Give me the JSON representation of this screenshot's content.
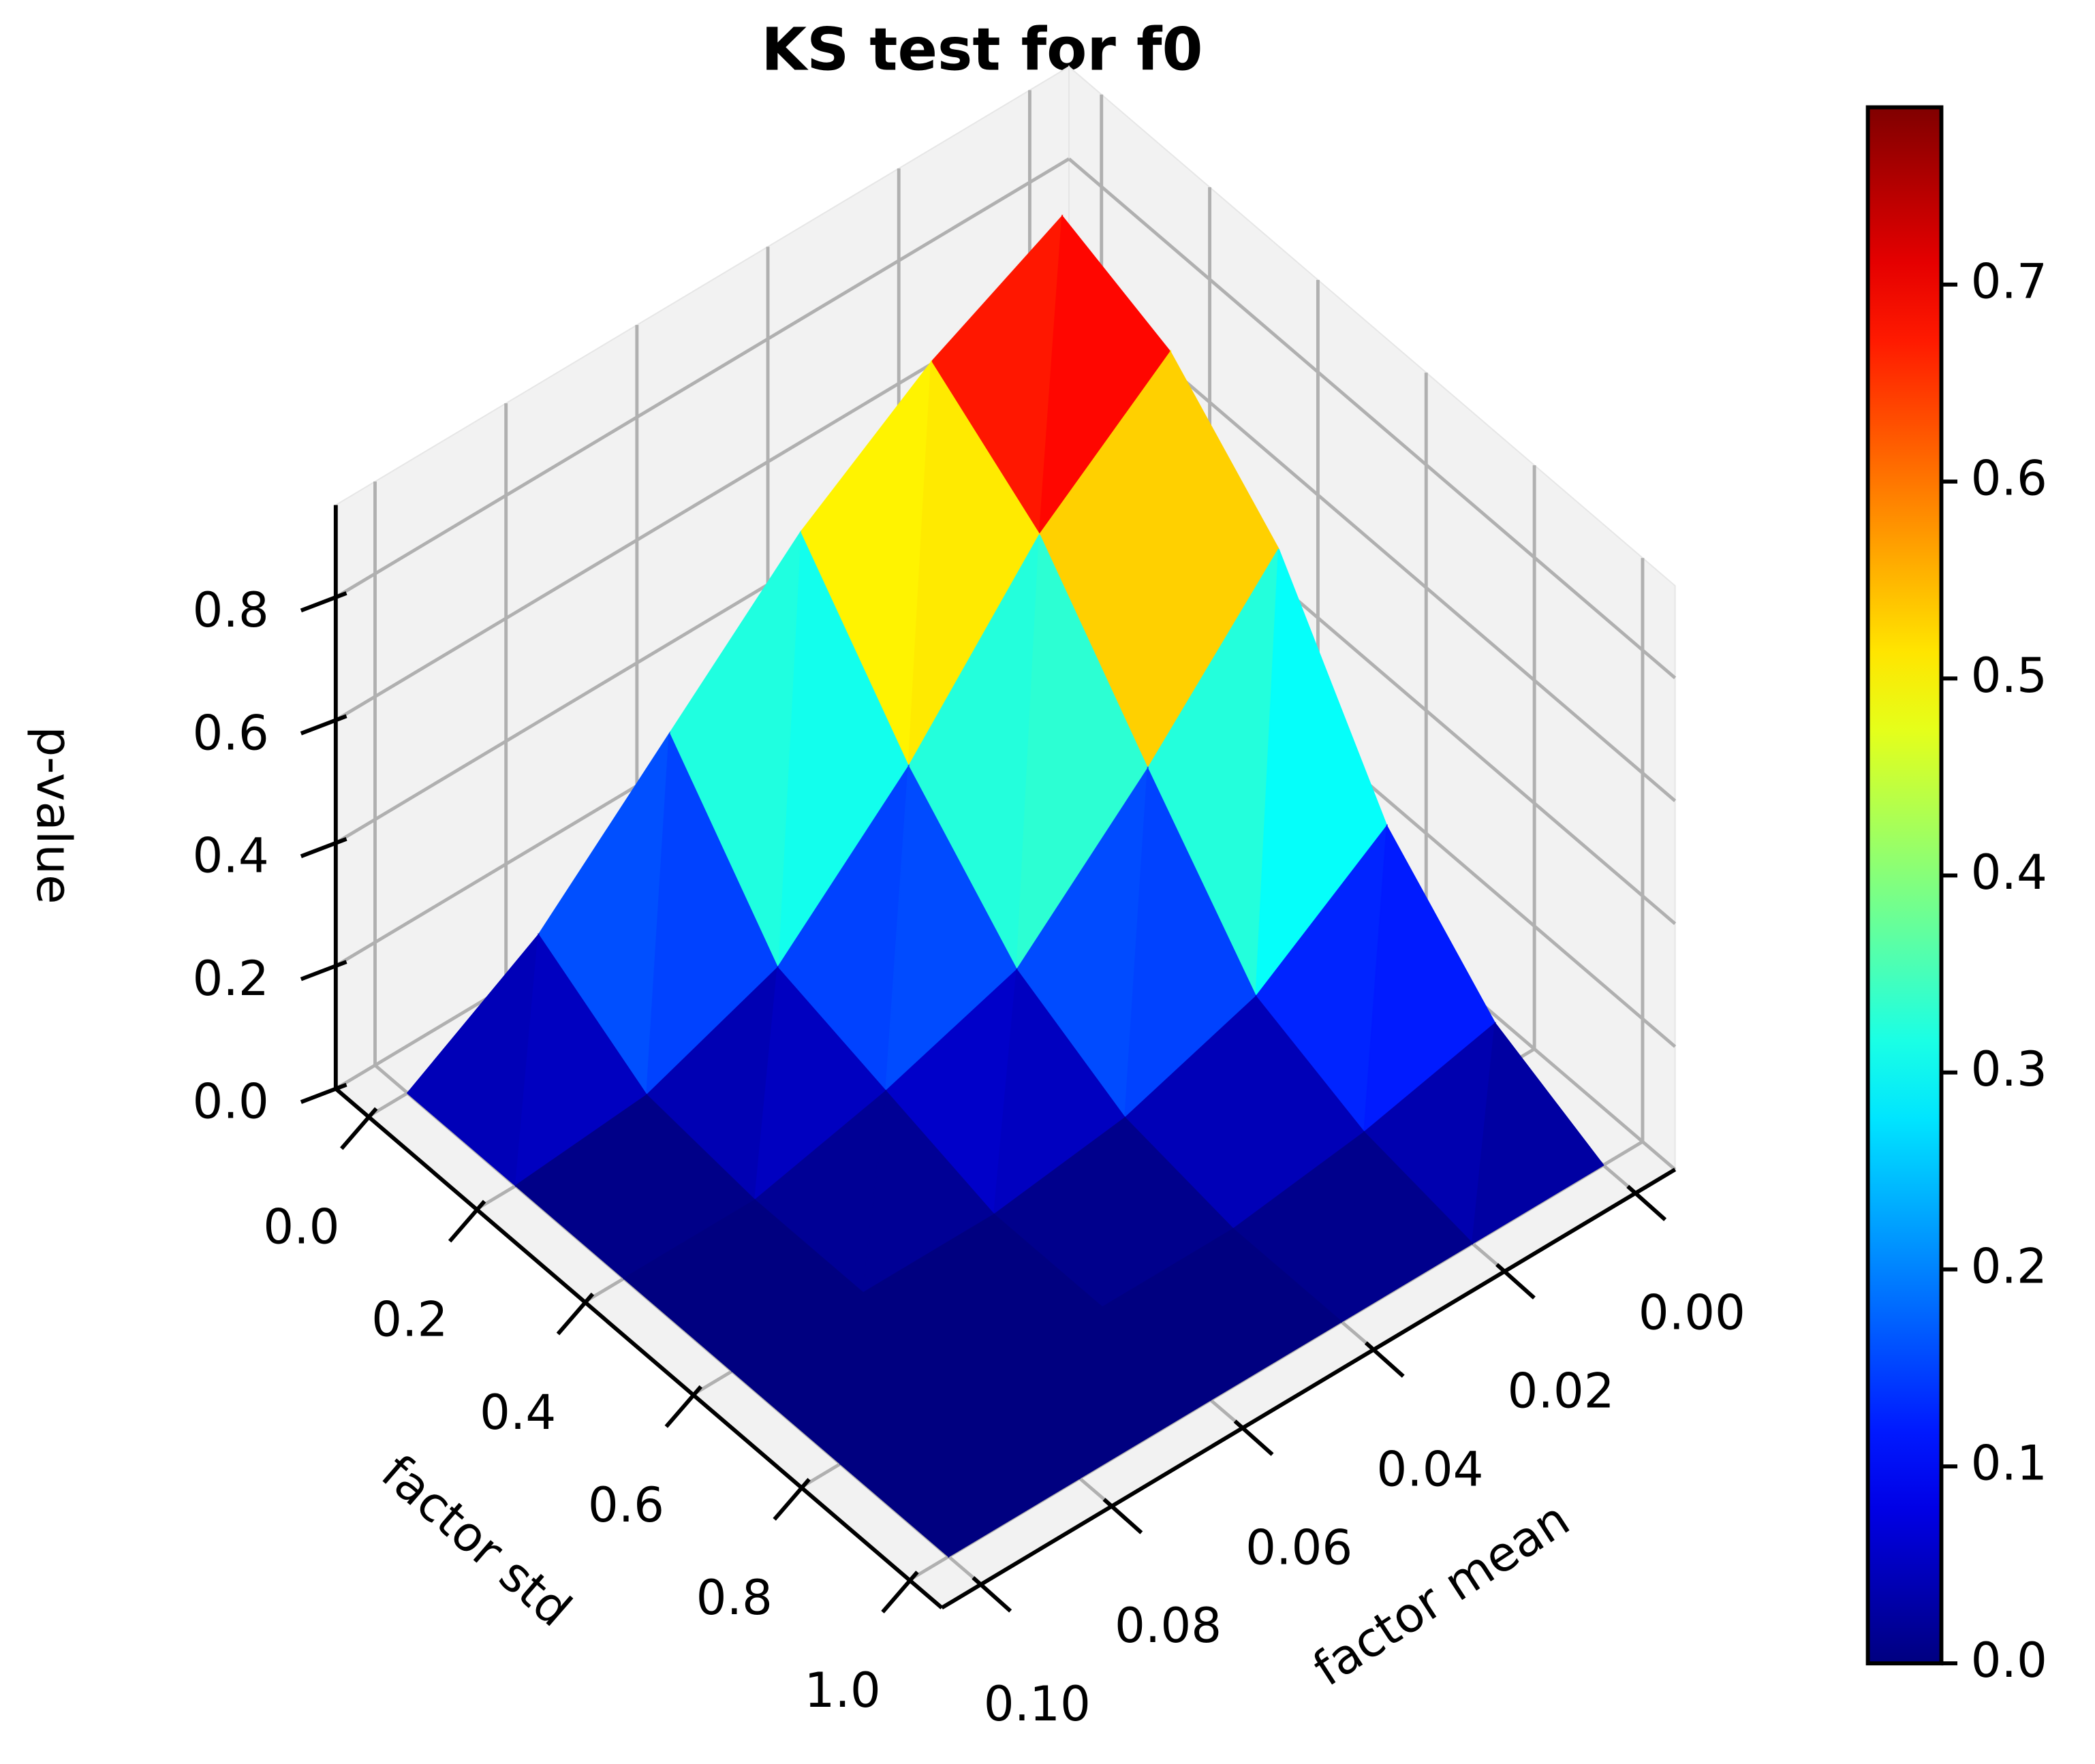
{
  "chart_data": {
    "type": "surface",
    "title": "KS test for f0",
    "xlabel": "factor mean",
    "ylabel": "factor std",
    "zlabel": "p-value",
    "x": [
      0,
      0.02,
      0.04,
      0.06,
      0.08,
      0.1
    ],
    "y": [
      0,
      0.2,
      0.4,
      0.6,
      0.8,
      1.0
    ],
    "z": [
      [
        0.79,
        0.68,
        0.53,
        0.33,
        0.13,
        0.0
      ],
      [
        0.72,
        0.55,
        0.3,
        0.1,
        0.02,
        0.0
      ],
      [
        0.55,
        0.32,
        0.12,
        0.05,
        0.0,
        0.0
      ],
      [
        0.25,
        0.1,
        0.03,
        0.0,
        0.0,
        0.0
      ],
      [
        0.08,
        0.03,
        0.0,
        0.0,
        0.0,
        0.0
      ],
      [
        0.0,
        0.0,
        0.0,
        0.0,
        0.0,
        0.0
      ]
    ],
    "colormap": "jet",
    "clim": [
      0,
      0.79
    ],
    "cticks": [
      {
        "value": 0,
        "label": "0.0"
      },
      0.1,
      0.2,
      0.3,
      0.4,
      0.5,
      0.6,
      0.7
    ],
    "xlim": [
      0,
      0.1
    ],
    "xticks": [
      {
        "value": 0,
        "label": "0.00"
      },
      0.02,
      0.04,
      0.06,
      0.08,
      {
        "value": 0.1,
        "label": "0.10"
      }
    ],
    "ylim": [
      0,
      1
    ],
    "yticks": [
      {
        "value": 0,
        "label": "0.0"
      },
      0.2,
      0.4,
      0.6,
      0.8,
      {
        "value": 1,
        "label": "1.0"
      }
    ],
    "zlim": [
      0,
      0.95
    ],
    "zticks": [
      {
        "value": 0,
        "label": "0.0"
      },
      0.2,
      0.4,
      0.6,
      0.8
    ],
    "grid": true
  }
}
